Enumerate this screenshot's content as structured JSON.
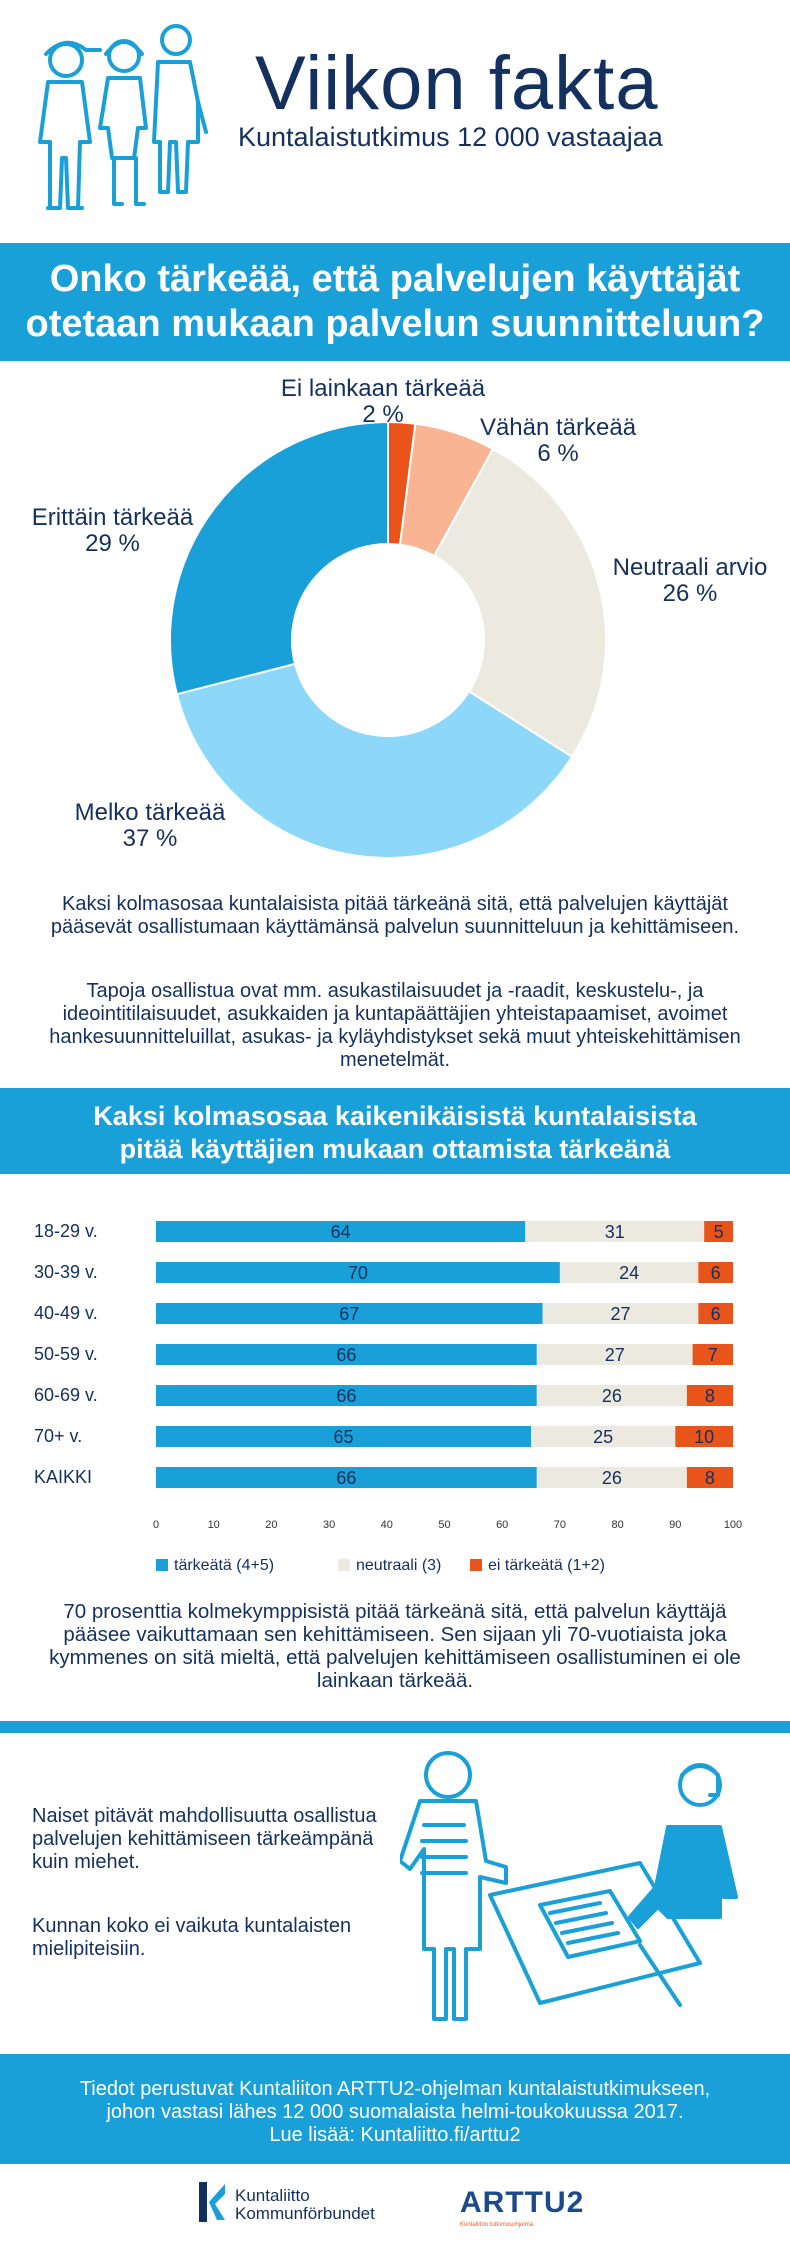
{
  "header": {
    "title": "Viikon fakta",
    "subtitle": "Kuntalaistutkimus 12 000 vastaajaa"
  },
  "question": {
    "line1": "Onko tärkeää, että palvelujen käyttäjät",
    "line2": "otetaan mukaan palvelun suunnitteluun?"
  },
  "donut": {
    "slices": [
      {
        "name": "Ei lainkaan tärkeää",
        "pct": "2 %",
        "value": 2,
        "color": "#e8541a"
      },
      {
        "name": "Vähän tärkeää",
        "pct": "6 %",
        "value": 6,
        "color": "#f8b493"
      },
      {
        "name": "Neutraali arvio",
        "pct": "26 %",
        "value": 26,
        "color": "#ece9e1"
      },
      {
        "name": "Melko tärkeää",
        "pct": "37 %",
        "value": 37,
        "color": "#8dd8f8"
      },
      {
        "name": "Erittäin tärkeää",
        "pct": "29 %",
        "value": 29,
        "color": "#1aa0d8"
      }
    ]
  },
  "para1": "Kaksi kolmasosaa kuntalaisista pitää tärkeänä sitä, että palvelujen käyttäjät pääsevät osallistumaan käyttämänsä palvelun suunnitteluun ja kehittämiseen.",
  "para2": "Tapoja osallistua ovat mm. asukastilaisuudet ja -raadit, keskustelu-, ja ideointitilaisuudet, asukkaiden ja kuntapäättäjien yhteistapaamiset, avoimet hankesuunnitteluillat, asukas- ja kyläyhdistykset sekä muut yhteiskehittämisen menetelmät.",
  "band2": {
    "line1": "Kaksi kolmasosaa kaikenikäisistä kuntalaisista",
    "line2": "pitää käyttäjien mukaan ottamista tärkeänä"
  },
  "chart_data": {
    "type": "bar",
    "stacked": true,
    "orientation": "horizontal",
    "categories": [
      "18-29 v.",
      "30-39 v.",
      "40-49 v.",
      "50-59 v.",
      "60-69 v.",
      "70+ v.",
      "KAIKKI"
    ],
    "series": [
      {
        "name": "tärkeätä (4+5)",
        "color": "#1aa0d8",
        "values": [
          64,
          70,
          67,
          66,
          66,
          65,
          66
        ]
      },
      {
        "name": "neutraali (3)",
        "color": "#ece9e1",
        "values": [
          31,
          24,
          27,
          27,
          26,
          25,
          26
        ]
      },
      {
        "name": "ei tärkeätä (1+2)",
        "color": "#e8541a",
        "values": [
          5,
          6,
          6,
          7,
          8,
          10,
          8
        ]
      }
    ],
    "xlim": [
      0,
      100
    ],
    "xticks": [
      0,
      10,
      20,
      30,
      40,
      50,
      60,
      70,
      80,
      90,
      100
    ],
    "legend_position": "bottom"
  },
  "para3": "70 prosenttia kolmekymppisistä pitää tärkeänä sitä, että palvelun käyttäjä pääsee vaikuttamaan sen kehittämiseen. Sen sijaan yli 70-vuotiaista joka kymmenes on sitä mieltä, että palvelujen kehittämiseen osallistuminen ei ole lainkaan tärkeää.",
  "side": {
    "text1": "Naiset pitävät mahdollisuutta osallistua palvelujen kehittämiseen tärkeämpänä kuin miehet.",
    "text2": "Kunnan koko ei vaikuta kuntalaisten mielipiteisiin."
  },
  "footer": {
    "line1": "Tiedot perustuvat Kuntaliiton ARTTU2-ohjelman kuntalaistutkimukseen,",
    "line2": "johon vastasi lähes 12 000 suomalaista helmi-toukokuussa 2017.",
    "line3": "Lue lisää: Kuntaliitto.fi/arttu2"
  },
  "logos": {
    "kuntaliitto1": "Kuntaliitto",
    "kuntaliitto2": "Kommunförbundet",
    "arttu": "ARTTU2",
    "arttu_sub": "Kuntaliiton tutkimusohjelma"
  },
  "colors": {
    "accent": "#1aa0d8",
    "navy": "#14305e",
    "orange": "#e8541a"
  }
}
